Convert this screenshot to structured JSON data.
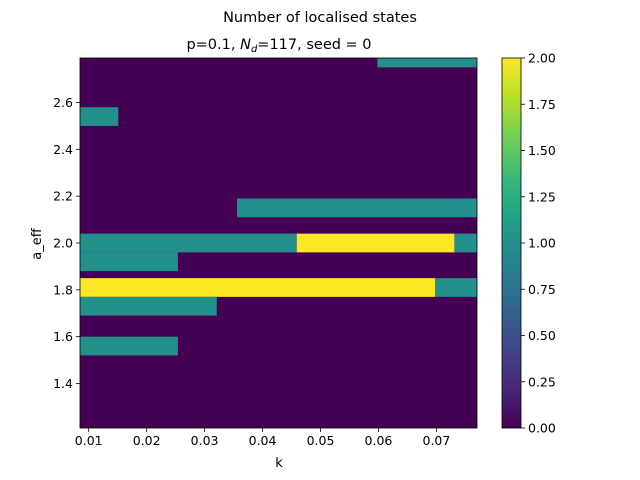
{
  "chart_data": {
    "type": "heatmap",
    "title": "Number of localised states",
    "subtitle": {
      "prefix": "p=0.1, ",
      "var": "N",
      "sub": "d",
      "suffix": "=117, seed = 0"
    },
    "xlabel": "k",
    "ylabel": "a_eff",
    "xlim": [
      0.0085,
      0.077
    ],
    "ylim": [
      1.21,
      2.79
    ],
    "x_ticks": [
      {
        "value": 0.01,
        "label": "0.01"
      },
      {
        "value": 0.02,
        "label": "0.02"
      },
      {
        "value": 0.03,
        "label": "0.03"
      },
      {
        "value": 0.04,
        "label": "0.04"
      },
      {
        "value": 0.05,
        "label": "0.05"
      },
      {
        "value": 0.06,
        "label": "0.06"
      },
      {
        "value": 0.07,
        "label": "0.07"
      }
    ],
    "y_ticks": [
      {
        "value": 1.4,
        "label": "1.4"
      },
      {
        "value": 1.6,
        "label": "1.6"
      },
      {
        "value": 1.8,
        "label": "1.8"
      },
      {
        "value": 2.0,
        "label": "2.0"
      },
      {
        "value": 2.2,
        "label": "2.2"
      },
      {
        "value": 2.4,
        "label": "2.4"
      },
      {
        "value": 2.6,
        "label": "2.6"
      }
    ],
    "background_value": 0,
    "cells": [
      {
        "x0": 0.0598,
        "x1": 0.077,
        "y0": 2.75,
        "y1": 2.79,
        "value": 1
      },
      {
        "x0": 0.0085,
        "x1": 0.0151,
        "y0": 2.5,
        "y1": 2.58,
        "value": 1
      },
      {
        "x0": 0.0356,
        "x1": 0.077,
        "y0": 2.11,
        "y1": 2.19,
        "value": 1
      },
      {
        "x0": 0.0085,
        "x1": 0.0459,
        "y0": 1.96,
        "y1": 2.04,
        "value": 1
      },
      {
        "x0": 0.0459,
        "x1": 0.0731,
        "y0": 1.96,
        "y1": 2.04,
        "value": 2
      },
      {
        "x0": 0.0731,
        "x1": 0.077,
        "y0": 1.96,
        "y1": 2.04,
        "value": 1
      },
      {
        "x0": 0.0085,
        "x1": 0.0254,
        "y0": 1.88,
        "y1": 1.96,
        "value": 1
      },
      {
        "x0": 0.0085,
        "x1": 0.0698,
        "y0": 1.77,
        "y1": 1.85,
        "value": 2
      },
      {
        "x0": 0.0698,
        "x1": 0.077,
        "y0": 1.77,
        "y1": 1.85,
        "value": 1
      },
      {
        "x0": 0.0085,
        "x1": 0.0321,
        "y0": 1.69,
        "y1": 1.77,
        "value": 1
      },
      {
        "x0": 0.0085,
        "x1": 0.0254,
        "y0": 1.52,
        "y1": 1.6,
        "value": 1
      }
    ],
    "colorbar": {
      "min": 0,
      "max": 2,
      "ticks": [
        {
          "value": 0,
          "label": "0.00"
        },
        {
          "value": 0.25,
          "label": "0.25"
        },
        {
          "value": 0.5,
          "label": "0.50"
        },
        {
          "value": 0.75,
          "label": "0.75"
        },
        {
          "value": 1.0,
          "label": "1.00"
        },
        {
          "value": 1.25,
          "label": "1.25"
        },
        {
          "value": 1.5,
          "label": "1.50"
        },
        {
          "value": 1.75,
          "label": "1.75"
        },
        {
          "value": 2.0,
          "label": "2.00"
        }
      ],
      "colormap": "viridis",
      "stops": [
        "#440154",
        "#482878",
        "#3e4989",
        "#31688e",
        "#26828e",
        "#1f9e89",
        "#35b779",
        "#6ece58",
        "#b5de2b",
        "#fde725"
      ]
    }
  }
}
